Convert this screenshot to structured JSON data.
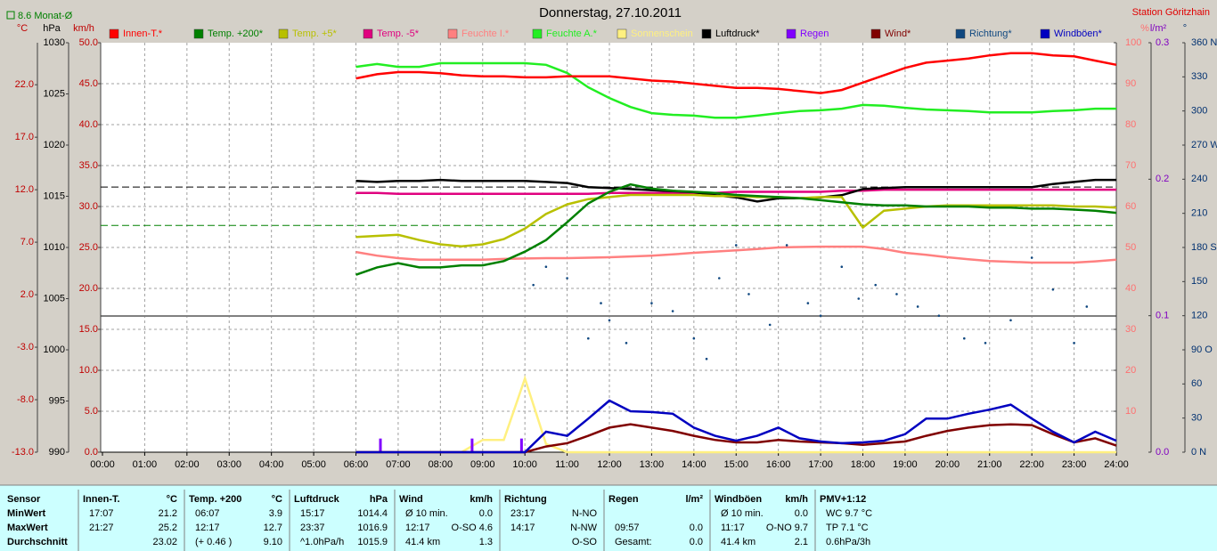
{
  "chart_data": {
    "type": "line",
    "title": "Donnerstag, 27.10.2011",
    "station": "Station Göritzhain",
    "grid": true,
    "grid_axis": 2,
    "x": [
      6,
      6.5,
      7,
      7.5,
      8,
      8.5,
      9,
      9.5,
      10,
      10.5,
      11,
      11.5,
      12,
      12.5,
      13,
      13.5,
      14,
      14.5,
      15,
      15.5,
      16,
      16.5,
      17,
      17.5,
      18,
      18.5,
      19,
      19.5,
      20,
      20.5,
      21,
      21.5,
      22,
      22.5,
      23,
      23.5,
      24
    ],
    "xlim": [
      0,
      24
    ],
    "xticks": [
      {
        "value": 0,
        "label": "00:00"
      },
      {
        "value": 1,
        "label": "01:00"
      },
      {
        "value": 2,
        "label": "02:00"
      },
      {
        "value": 3,
        "label": "03:00"
      },
      {
        "value": 4,
        "label": "04:00"
      },
      {
        "value": 5,
        "label": "05:00"
      },
      {
        "value": 6,
        "label": "06:00"
      },
      {
        "value": 7,
        "label": "07:00"
      },
      {
        "value": 8,
        "label": "08:00"
      },
      {
        "value": 9,
        "label": "09:00"
      },
      {
        "value": 10,
        "label": "10:00"
      },
      {
        "value": 11,
        "label": "11:00"
      },
      {
        "value": 12,
        "label": "12:00"
      },
      {
        "value": 13,
        "label": "13:00"
      },
      {
        "value": 14,
        "label": "14:00"
      },
      {
        "value": 15,
        "label": "15:00"
      },
      {
        "value": 16,
        "label": "16:00"
      },
      {
        "value": 17,
        "label": "17:00"
      },
      {
        "value": 18,
        "label": "18:00"
      },
      {
        "value": 19,
        "label": "19:00"
      },
      {
        "value": 20,
        "label": "20:00"
      },
      {
        "value": 21,
        "label": "21:00"
      },
      {
        "value": 22,
        "label": "22:00"
      },
      {
        "value": 23,
        "label": "23:00"
      },
      {
        "value": 24,
        "label": "24:00"
      }
    ],
    "axes": [
      {
        "unit": "°C",
        "side": "left",
        "color": "#c00000",
        "ylim": [
          -13,
          26
        ],
        "yticks": [
          {
            "value": -13,
            "label": "-13.0"
          },
          {
            "value": -8,
            "label": "-8.0"
          },
          {
            "value": -3,
            "label": "-3.0"
          },
          {
            "value": 2,
            "label": "2.0"
          },
          {
            "value": 7,
            "label": "7.0"
          },
          {
            "value": 12,
            "label": "12.0"
          },
          {
            "value": 17,
            "label": "17.0"
          },
          {
            "value": 22,
            "label": "22.0"
          }
        ]
      },
      {
        "unit": "hPa",
        "side": "left",
        "color": "#000000",
        "ylim": [
          990,
          1030
        ],
        "yticks": [
          990,
          995,
          1000,
          1005,
          1010,
          1015,
          1020,
          1025,
          1030
        ]
      },
      {
        "unit": "km/h",
        "side": "left",
        "color": "#c00000",
        "ylim": [
          0,
          50
        ],
        "yticks": [
          {
            "value": 0,
            "label": "0.0"
          },
          {
            "value": 5,
            "label": "5.0"
          },
          {
            "value": 10,
            "label": "10.0"
          },
          {
            "value": 15,
            "label": "15.0"
          },
          {
            "value": 20,
            "label": "20.0"
          },
          {
            "value": 25,
            "label": "25.0"
          },
          {
            "value": 30,
            "label": "30.0"
          },
          {
            "value": 35,
            "label": "35.0"
          },
          {
            "value": 40,
            "label": "40.0"
          },
          {
            "value": 45,
            "label": "45.0"
          },
          {
            "value": 50,
            "label": "50.0"
          }
        ]
      },
      {
        "unit": "%",
        "side": "right",
        "color": "#ff7070",
        "ylim": [
          0,
          100
        ],
        "yticks": [
          10,
          20,
          30,
          40,
          50,
          60,
          70,
          80,
          90,
          100
        ]
      },
      {
        "unit": "l/m²",
        "side": "right",
        "color": "#8000c0",
        "ylim": [
          0,
          0.3
        ],
        "yticks": [
          {
            "value": 0,
            "label": "0.0"
          },
          0.1,
          0.2,
          0.3
        ]
      },
      {
        "unit": "°",
        "side": "right",
        "color": "#003070",
        "ylim": [
          0,
          360
        ],
        "yticks": [
          {
            "value": 0,
            "label": "0 N"
          },
          30,
          60,
          {
            "value": 90,
            "label": "90 O"
          },
          120,
          150,
          {
            "value": 180,
            "label": "180 S"
          },
          210,
          240,
          {
            "value": 270,
            "label": "270 W"
          },
          300,
          330,
          {
            "value": 360,
            "label": "360 N"
          }
        ]
      }
    ],
    "reference_lines": [
      {
        "label": "8.6 Monat-Ø",
        "value": 8.6,
        "axis": 0,
        "color": "#008000"
      },
      {
        "value": 1015.9,
        "axis": 1,
        "color": "#000000"
      }
    ],
    "series": [
      {
        "name": "Innen-T.*",
        "color": "#ff0000",
        "axis": 0,
        "style": "line",
        "values": [
          22.6,
          23.0,
          23.2,
          23.2,
          23.1,
          22.9,
          22.8,
          22.8,
          22.7,
          22.7,
          22.8,
          22.8,
          22.8,
          22.6,
          22.4,
          22.3,
          22.1,
          21.9,
          21.7,
          21.7,
          21.6,
          21.4,
          21.2,
          21.5,
          22.2,
          22.9,
          23.6,
          24.1,
          24.3,
          24.5,
          24.8,
          25.0,
          25.0,
          24.8,
          24.7,
          24.3,
          23.9
        ]
      },
      {
        "name": "Temp. +200*",
        "color": "#008000",
        "axis": 0,
        "style": "line",
        "values": [
          3.9,
          4.6,
          5.0,
          4.6,
          4.6,
          4.8,
          4.8,
          5.2,
          6.1,
          7.2,
          8.9,
          10.7,
          11.8,
          12.5,
          12.1,
          11.9,
          11.8,
          11.7,
          11.5,
          11.4,
          11.3,
          11.2,
          11.0,
          10.8,
          10.6,
          10.5,
          10.5,
          10.4,
          10.4,
          10.4,
          10.3,
          10.3,
          10.2,
          10.2,
          10.1,
          10.0,
          9.8
        ]
      },
      {
        "name": "Temp. +5*",
        "color": "#b8c000",
        "axis": 0,
        "style": "line",
        "values": [
          7.5,
          7.6,
          7.7,
          7.2,
          6.8,
          6.6,
          6.8,
          7.3,
          8.3,
          9.7,
          10.6,
          11.1,
          11.3,
          11.5,
          11.5,
          11.5,
          11.5,
          11.4,
          11.4,
          11.3,
          11.3,
          11.2,
          11.3,
          11.3,
          8.4,
          10.0,
          10.2,
          10.4,
          10.5,
          10.5,
          10.5,
          10.5,
          10.5,
          10.5,
          10.4,
          10.4,
          10.3
        ]
      },
      {
        "name": "Temp. -5*",
        "color": "#e0007f",
        "axis": 0,
        "style": "line",
        "values": [
          11.7,
          11.7,
          11.6,
          11.6,
          11.6,
          11.6,
          11.6,
          11.6,
          11.6,
          11.6,
          11.6,
          11.6,
          11.7,
          11.7,
          11.7,
          11.7,
          11.7,
          11.7,
          11.8,
          11.8,
          11.8,
          11.8,
          11.8,
          11.9,
          11.9,
          12.0,
          12.0,
          12.0,
          12.0,
          12.0,
          12.0,
          12.0,
          12.0,
          12.0,
          12.0,
          12.0,
          12.0
        ]
      },
      {
        "name": "Feuchte I.*",
        "color": "#ff8080",
        "axis": 3,
        "style": "line",
        "values": [
          48.9,
          48.0,
          47.4,
          47.0,
          47.0,
          47.0,
          47.0,
          47.2,
          47.3,
          47.4,
          47.4,
          47.5,
          47.6,
          47.8,
          48.0,
          48.3,
          48.7,
          49.0,
          49.3,
          49.6,
          50.0,
          50.1,
          50.2,
          50.2,
          50.2,
          49.6,
          48.7,
          48.2,
          47.6,
          47.1,
          46.7,
          46.5,
          46.3,
          46.3,
          46.3,
          46.6,
          47.0
        ]
      },
      {
        "name": "Feuchte A.*",
        "color": "#22ee22",
        "axis": 3,
        "style": "line",
        "values": [
          94.1,
          94.8,
          94.1,
          94.1,
          95.0,
          95.0,
          95.0,
          95.0,
          95.0,
          94.6,
          92.6,
          89.1,
          86.5,
          84.3,
          82.8,
          82.4,
          82.2,
          81.7,
          81.7,
          82.2,
          82.8,
          83.3,
          83.5,
          83.9,
          84.8,
          84.6,
          84.1,
          83.7,
          83.5,
          83.3,
          83.0,
          83.0,
          83.0,
          83.3,
          83.5,
          83.9,
          83.9
        ]
      },
      {
        "name": "Sonnenschein",
        "color": "#fff080",
        "axis": 3,
        "style": "line",
        "values": [
          0,
          0,
          0,
          0,
          0,
          0,
          3,
          3,
          18,
          2,
          0,
          0,
          0,
          0,
          0,
          0,
          0,
          0,
          0,
          0,
          0,
          0,
          0,
          0,
          0,
          0,
          0,
          0,
          0,
          0,
          0,
          0,
          0,
          0,
          0,
          0,
          0
        ]
      },
      {
        "name": "Luftdruck*",
        "color": "#000000",
        "axis": 1,
        "style": "line",
        "values": [
          1016.5,
          1016.4,
          1016.5,
          1016.5,
          1016.6,
          1016.5,
          1016.5,
          1016.5,
          1016.5,
          1016.4,
          1016.3,
          1015.9,
          1015.8,
          1015.7,
          1015.6,
          1015.5,
          1015.4,
          1015.1,
          1014.9,
          1014.5,
          1014.8,
          1014.8,
          1014.9,
          1015.1,
          1015.7,
          1015.8,
          1015.9,
          1015.9,
          1015.9,
          1015.9,
          1015.9,
          1015.9,
          1015.9,
          1016.2,
          1016.4,
          1016.6,
          1016.6
        ]
      },
      {
        "name": "Regen",
        "color": "#8000ff",
        "axis": 4,
        "style": "bar",
        "x": [
          6.58,
          8.75,
          9.92
        ],
        "values": [
          0.01,
          0.01,
          0.01
        ]
      },
      {
        "name": "Wind*",
        "color": "#800000",
        "axis": 2,
        "style": "line",
        "values": [
          0,
          0,
          0,
          0,
          0,
          0,
          0,
          0,
          0,
          0.7,
          1.1,
          2.0,
          3.0,
          3.4,
          3.0,
          2.6,
          2.0,
          1.5,
          1.2,
          1.2,
          1.5,
          1.3,
          1.2,
          1.1,
          0.9,
          1.1,
          1.3,
          2.0,
          2.6,
          3.0,
          3.3,
          3.4,
          3.3,
          2.2,
          1.2,
          1.7,
          0.8
        ]
      },
      {
        "name": "Richtung*",
        "color": "#104880",
        "axis": 5,
        "style": "points",
        "x": [
          10.2,
          10.5,
          11.0,
          11.5,
          11.8,
          12.0,
          12.4,
          13.0,
          13.5,
          14.0,
          14.3,
          14.6,
          15.0,
          15.3,
          15.8,
          16.2,
          16.7,
          17.0,
          17.5,
          17.9,
          18.3,
          18.8,
          19.3,
          19.8,
          20.4,
          20.9,
          21.5,
          22.0,
          22.5,
          23.0,
          23.3
        ],
        "values": [
          147,
          163,
          153,
          100,
          131,
          116,
          96,
          131,
          124,
          100,
          82,
          153,
          182,
          139,
          112,
          182,
          131,
          120,
          163,
          135,
          147,
          139,
          128,
          120,
          100,
          96,
          116,
          171,
          143,
          96,
          128
        ]
      },
      {
        "name": "Windböen*",
        "color": "#0000c0",
        "axis": 2,
        "style": "line",
        "values": [
          0,
          0,
          0,
          0,
          0,
          0,
          0,
          0,
          0,
          2.5,
          2.0,
          4.1,
          6.3,
          5.0,
          4.9,
          4.7,
          3.0,
          2.0,
          1.4,
          2.0,
          3.0,
          1.7,
          1.3,
          1.1,
          1.2,
          1.4,
          2.2,
          4.1,
          4.1,
          4.7,
          5.2,
          5.8,
          4.1,
          2.5,
          1.2,
          2.5,
          1.4
        ]
      }
    ]
  },
  "stats_table": {
    "columns": [
      {
        "header": "Sensor",
        "unit": null,
        "rows": [
          [
            "MinWert",
            null
          ],
          [
            "MaxWert",
            null
          ],
          [
            "Durchschnitt",
            null
          ]
        ]
      },
      {
        "header": "Innen-T.",
        "unit": "°C",
        "rows": [
          [
            "17:07",
            "21.2"
          ],
          [
            "21:27",
            "25.2"
          ],
          [
            null,
            "23.02"
          ]
        ]
      },
      {
        "header": "Temp. +200",
        "unit": "°C",
        "rows": [
          [
            "06:07",
            "3.9"
          ],
          [
            "12:17",
            "12.7"
          ],
          [
            "(+ 0.46 )",
            "9.10"
          ]
        ]
      },
      {
        "header": "Luftdruck",
        "unit": "hPa",
        "rows": [
          [
            "15:17",
            "1014.4"
          ],
          [
            "23:37",
            "1016.9"
          ],
          [
            "^1.0hPa/h",
            "1015.9"
          ]
        ]
      },
      {
        "header": "Wind",
        "unit": "km/h",
        "rows": [
          [
            "Ø 10 min.",
            "0.0"
          ],
          [
            "12:17",
            "O-SO 4.6"
          ],
          [
            "41.4 km",
            "1.3"
          ]
        ]
      },
      {
        "header": "Richtung",
        "unit": null,
        "rows": [
          [
            "23:17",
            "N-NO"
          ],
          [
            "14:17",
            "N-NW"
          ],
          [
            null,
            "O-SO"
          ]
        ]
      },
      {
        "header": "Regen",
        "unit": "l/m²",
        "rows": [
          [
            null,
            null
          ],
          [
            "09:57",
            "0.0"
          ],
          [
            "Gesamt:",
            "0.0"
          ]
        ]
      },
      {
        "header": "Windböen",
        "unit": "km/h",
        "rows": [
          [
            "Ø 10 min.",
            "0.0"
          ],
          [
            "11:17",
            "O-NO 9.7"
          ],
          [
            "41.4 km",
            "2.1"
          ]
        ]
      },
      {
        "header": "PMV+1:12",
        "unit": null,
        "rows": [
          [
            "WC 9.7 °C",
            null
          ],
          [
            "TP 7.1 °C",
            null
          ],
          [
            "0.6hPa/3h",
            null
          ]
        ]
      }
    ]
  }
}
